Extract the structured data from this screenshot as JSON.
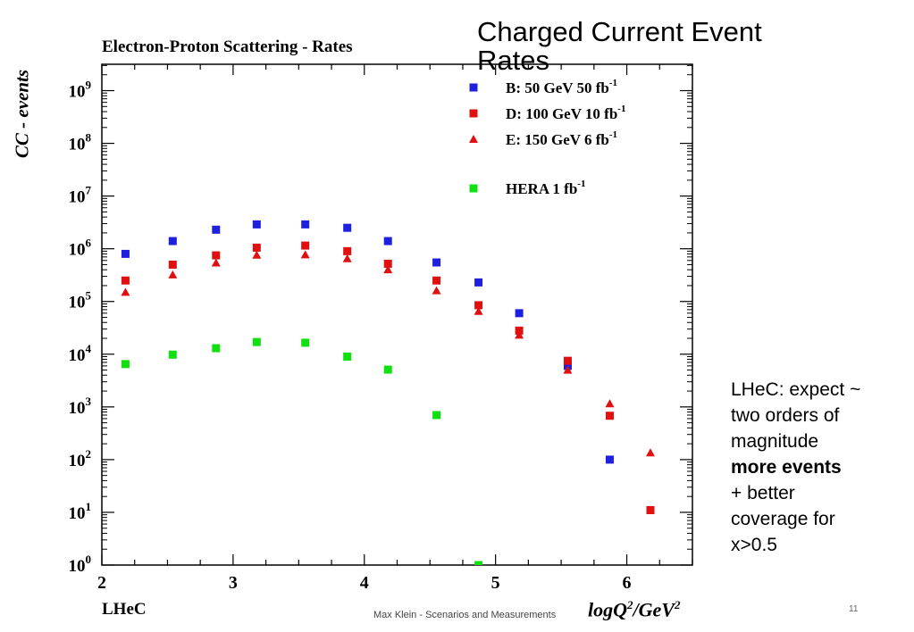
{
  "slide_title": "Charged  Current Event Rates",
  "notes": {
    "line1": "LHeC: expect ~",
    "line2": "two orders of",
    "line3": "magnitude",
    "line4": "more events",
    "line5": "+ better",
    "line6": "coverage for",
    "line7": "x>0.5"
  },
  "footer": "Max Klein - Scenarios and Measurements",
  "page_number": "11",
  "bottom_left_label": "LHeC",
  "chart_data": {
    "type": "scatter",
    "title": "Electron-Proton Scattering - Rates",
    "ylabel": "CC - events",
    "xlabel": "logQ",
    "xlabel_sup1": "2",
    "xlabel_mid": "/GeV",
    "xlabel_sup2": "2",
    "xlim": [
      2,
      6.5
    ],
    "ylim_log10": [
      0,
      9.5
    ],
    "yscale": "log",
    "x_ticks": [
      2,
      3,
      4,
      5,
      6
    ],
    "y_tick_exponents": [
      0,
      1,
      2,
      3,
      4,
      5,
      6,
      7,
      8,
      9
    ],
    "legend_position": "top-right",
    "series": [
      {
        "name": "B: 50 GeV 50 fb",
        "name_sup": "-1",
        "marker": "square",
        "color": "#1f1fe0",
        "x": [
          2.18,
          2.54,
          2.87,
          3.18,
          3.55,
          3.87,
          4.18,
          4.55,
          4.87,
          5.18,
          5.55,
          5.87
        ],
        "y": [
          800000,
          1400000,
          2300000,
          2900000,
          2900000,
          2500000,
          1400000,
          550000,
          230000,
          60000,
          6000,
          100
        ]
      },
      {
        "name": "D: 100 GeV 10 fb",
        "name_sup": "-1",
        "marker": "square",
        "color": "#e01010",
        "x": [
          2.18,
          2.54,
          2.87,
          3.18,
          3.55,
          3.87,
          4.18,
          4.55,
          4.87,
          5.18,
          5.55,
          5.87,
          6.18
        ],
        "y": [
          250000,
          500000,
          750000,
          1050000,
          1150000,
          900000,
          520000,
          250000,
          85000,
          28000,
          7500,
          680,
          11
        ]
      },
      {
        "name": "E: 150 GeV 6 fb",
        "name_sup": "-1",
        "marker": "triangle",
        "color": "#e01010",
        "x": [
          2.18,
          2.54,
          2.87,
          3.18,
          3.55,
          3.87,
          4.18,
          4.55,
          4.87,
          5.18,
          5.55,
          5.87,
          6.18
        ],
        "y": [
          150000,
          320000,
          540000,
          760000,
          770000,
          650000,
          400000,
          160000,
          65000,
          23000,
          5000,
          1150,
          135
        ]
      },
      {
        "name": "HERA  1 fb",
        "name_sup": "-1",
        "marker": "square",
        "color": "#10e010",
        "x": [
          2.18,
          2.54,
          2.87,
          3.18,
          3.55,
          3.87,
          4.18,
          4.55,
          4.87
        ],
        "y": [
          6500,
          9800,
          13000,
          17000,
          16500,
          9000,
          5100,
          700,
          1
        ]
      }
    ]
  }
}
